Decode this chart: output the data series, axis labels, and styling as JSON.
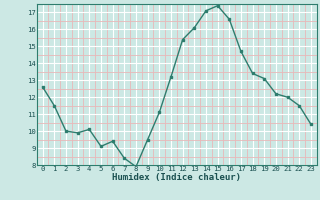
{
  "x": [
    0,
    1,
    2,
    3,
    4,
    5,
    6,
    7,
    8,
    9,
    10,
    11,
    12,
    13,
    14,
    15,
    16,
    17,
    18,
    19,
    20,
    21,
    22,
    23
  ],
  "y": [
    12.6,
    11.5,
    10.0,
    9.9,
    10.1,
    9.1,
    9.4,
    8.4,
    7.9,
    9.5,
    11.1,
    13.2,
    15.4,
    16.1,
    17.1,
    17.4,
    16.6,
    14.7,
    13.4,
    13.1,
    12.2,
    12.0,
    11.5,
    10.4
  ],
  "xlabel": "Humidex (Indice chaleur)",
  "ylim": [
    8,
    17.5
  ],
  "xlim": [
    -0.5,
    23.5
  ],
  "yticks": [
    8,
    9,
    10,
    11,
    12,
    13,
    14,
    15,
    16,
    17
  ],
  "xticks": [
    0,
    1,
    2,
    3,
    4,
    5,
    6,
    7,
    8,
    9,
    10,
    11,
    12,
    13,
    14,
    15,
    16,
    17,
    18,
    19,
    20,
    21,
    22,
    23
  ],
  "line_color": "#2e7d6e",
  "marker_color": "#2e7d6e",
  "bg_color": "#cce8e4",
  "grid_color_major": "#ffffff",
  "grid_color_minor": "#e8b8b8",
  "spine_color": "#2e7d6e",
  "tick_color": "#2e7d6e",
  "label_color": "#1a5050",
  "xlabel_fontsize": 6.5,
  "tick_fontsize": 5.2
}
